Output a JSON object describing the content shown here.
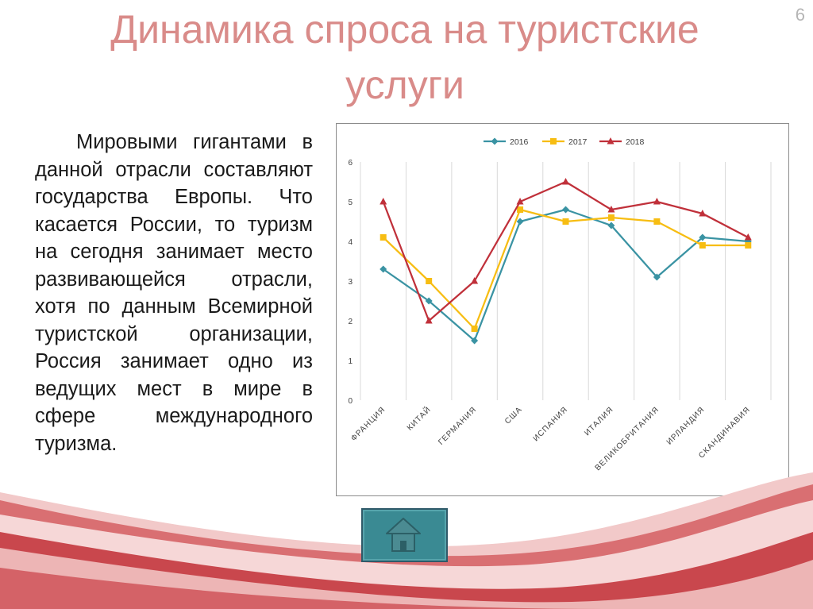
{
  "slide": {
    "title": "Динамика спроса на туристские услуги",
    "number": "6",
    "text": "Мировыми гигантами в данной отрасли составляют государства Европы. Что касается России, то туризм на сегодня занимает место развивающейся отрасли, хотя по данным Всемирной туристской организации, Россия занимает одно из ведущих мест в мире в сфере международного туризма."
  },
  "navigation": {
    "home_icon": "home-icon"
  },
  "chart_data": {
    "type": "line",
    "title": "",
    "xlabel": "",
    "ylabel": "",
    "categories": [
      "ФРАНЦИЯ",
      "КИТАЙ",
      "ГЕРМАНИЯ",
      "США",
      "ИСПАНИЯ",
      "ИТАЛИЯ",
      "ВЕЛИКОБРИТАНИЯ",
      "ИРЛАНДИЯ",
      "СКАНДИНАВИЯ"
    ],
    "ylim": [
      0,
      6
    ],
    "yticks": [
      "0",
      "1",
      "2",
      "3",
      "4",
      "5",
      "6"
    ],
    "grid": "vertical",
    "legend_position": "top",
    "series": [
      {
        "name": "2016",
        "color": "#3a93a3",
        "marker": "diamond",
        "values": [
          3.3,
          2.5,
          1.5,
          4.5,
          4.8,
          4.4,
          3.1,
          4.1,
          4.0
        ]
      },
      {
        "name": "2017",
        "color": "#f7bd12",
        "marker": "square",
        "values": [
          4.1,
          3.0,
          1.8,
          4.8,
          4.5,
          4.6,
          4.5,
          3.9,
          3.9
        ]
      },
      {
        "name": "2018",
        "color": "#c0303a",
        "marker": "triangle",
        "values": [
          5.0,
          2.0,
          3.0,
          5.0,
          5.5,
          4.8,
          5.0,
          4.7,
          4.1
        ]
      }
    ]
  }
}
